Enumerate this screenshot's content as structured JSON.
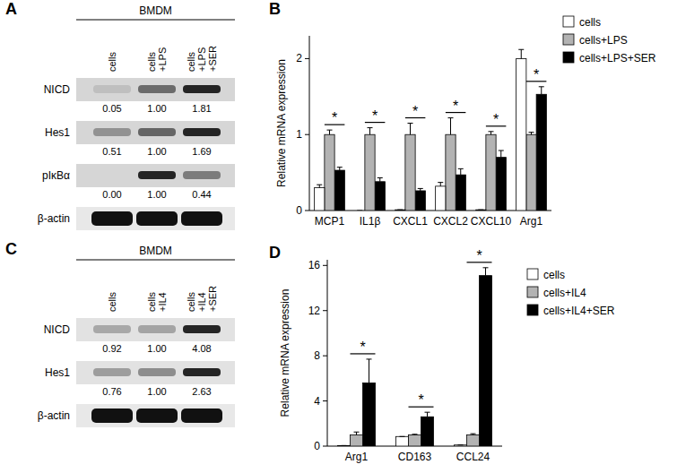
{
  "chart_data": [
    {
      "type": "blot",
      "title": "A",
      "group": "BMDM",
      "lanes": [
        [
          "cells"
        ],
        [
          "cells",
          "+LPS"
        ],
        [
          "cells",
          "+LPS",
          "+SER"
        ]
      ],
      "rows": [
        {
          "name": "NICD",
          "values": [
            0.05,
            1.0,
            1.81
          ],
          "value_labels": [
            "0.05",
            "1.00",
            "1.81"
          ]
        },
        {
          "name": "Hes1",
          "values": [
            0.51,
            1.0,
            1.69
          ],
          "value_labels": [
            "0.51",
            "1.00",
            "1.69"
          ]
        },
        {
          "name": "pIκBα",
          "values": [
            0,
            1.0,
            0.44
          ],
          "value_labels": [
            "0.00",
            "1.00",
            "0.44"
          ]
        },
        {
          "name": "β-actin"
        }
      ]
    },
    {
      "type": "bar",
      "title": "B",
      "y_label": "Relative mRNA expression",
      "categories": [
        "MCP1",
        "IL1β",
        "CXCL1",
        "CXCL2",
        "CXCL10",
        "Arg1"
      ],
      "series": [
        {
          "name": "cells",
          "color": "#ffffff",
          "values": [
            0.3,
            0.0,
            0.01,
            0.32,
            0.01,
            2.0
          ],
          "errors": [
            0.04,
            0.0,
            0.0,
            0.05,
            0.0,
            0.12
          ]
        },
        {
          "name": "cells+LPS",
          "color": "#b3b3b3",
          "values": [
            1.0,
            1.0,
            1.0,
            1.0,
            1.0,
            1.0
          ],
          "errors": [
            0.06,
            0.09,
            0.15,
            0.22,
            0.04,
            0.03
          ]
        },
        {
          "name": "cells+LPS+SER",
          "color": "#000000",
          "values": [
            0.53,
            0.38,
            0.26,
            0.47,
            0.7,
            1.53
          ],
          "errors": [
            0.04,
            0.05,
            0.03,
            0.08,
            0.09,
            0.1
          ]
        }
      ],
      "ylim": [
        0,
        2.3
      ],
      "yticks": [
        0,
        1,
        2
      ],
      "legend": "upper right",
      "annotations": [
        "*",
        "*",
        "*",
        "*",
        "*",
        "*"
      ]
    },
    {
      "type": "blot",
      "title": "C",
      "group": "BMDM",
      "lanes": [
        [
          "cells"
        ],
        [
          "cells",
          "+IL4"
        ],
        [
          "cells",
          "+IL4",
          "+SER"
        ]
      ],
      "rows": [
        {
          "name": "NICD",
          "values": [
            0.92,
            1.0,
            4.08
          ],
          "value_labels": [
            "0.92",
            "1.00",
            "4.08"
          ]
        },
        {
          "name": "Hes1",
          "values": [
            0.76,
            1.0,
            2.63
          ],
          "value_labels": [
            "0.76",
            "1.00",
            "2.63"
          ]
        },
        {
          "name": "β-actin"
        }
      ]
    },
    {
      "type": "bar",
      "title": "D",
      "y_label": "Relative mRNA expression",
      "categories": [
        "Arg1",
        "CD163",
        "CCL24"
      ],
      "series": [
        {
          "name": "cells",
          "color": "#ffffff",
          "values": [
            0.05,
            0.85,
            0.1
          ],
          "errors": [
            0.0,
            0.0,
            0.0
          ]
        },
        {
          "name": "cells+IL4",
          "color": "#b3b3b3",
          "values": [
            1.0,
            1.0,
            1.0
          ],
          "errors": [
            0.25,
            0.05,
            0.1
          ]
        },
        {
          "name": "cells+IL4+SER",
          "color": "#000000",
          "values": [
            5.6,
            2.6,
            15.1
          ],
          "errors": [
            2.1,
            0.4,
            0.7
          ]
        }
      ],
      "ylim": [
        0,
        16.5
      ],
      "yticks": [
        0,
        4,
        8,
        12,
        16
      ],
      "legend": "right",
      "annotations": [
        "*",
        "*",
        "*"
      ]
    }
  ]
}
